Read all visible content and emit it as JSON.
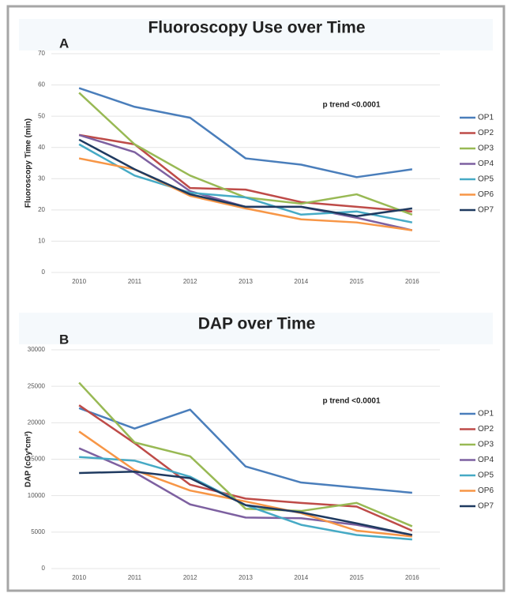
{
  "chart_data": [
    {
      "type": "line",
      "title": "Fluoroscopy Use over Time",
      "panel_label": "A",
      "annotation": "p trend <0.0001",
      "y_label": "Fluoroscopy Time (min)",
      "categories": [
        "2010",
        "2011",
        "2012",
        "2013",
        "2014",
        "2015",
        "2016"
      ],
      "ylim": [
        0,
        70
      ],
      "yticks": [
        0,
        10,
        20,
        30,
        40,
        50,
        60,
        70
      ],
      "grid": true,
      "legend": "right",
      "series": [
        {
          "name": "OP1",
          "color": "#4a7ebb",
          "values": [
            59,
            53,
            49.5,
            36.5,
            34.5,
            30.5,
            33
          ]
        },
        {
          "name": "OP2",
          "color": "#be4b48",
          "values": [
            44,
            41,
            27,
            26.5,
            22.5,
            21,
            19.5
          ]
        },
        {
          "name": "OP3",
          "color": "#98b954",
          "values": [
            57.5,
            41,
            31,
            24,
            22,
            25,
            18.5
          ]
        },
        {
          "name": "OP4",
          "color": "#7d60a0",
          "values": [
            44,
            38.5,
            26,
            21,
            21,
            17.5,
            13.5
          ]
        },
        {
          "name": "OP5",
          "color": "#46aac5",
          "values": [
            41,
            31,
            25.5,
            24,
            18.5,
            19.5,
            16
          ]
        },
        {
          "name": "OP6",
          "color": "#f79646",
          "values": [
            36.5,
            33,
            24.5,
            20.5,
            17,
            16,
            13.5
          ]
        },
        {
          "name": "OP7",
          "color": "#1f3a60",
          "values": [
            42.5,
            33,
            25,
            21,
            21,
            18,
            20.5
          ]
        }
      ]
    },
    {
      "type": "line",
      "title": "DAP over Time",
      "panel_label": "B",
      "annotation": "p trend <0.0001",
      "y_label": "DAP (cGy*cm²)",
      "categories": [
        "2010",
        "2011",
        "2012",
        "2013",
        "2014",
        "2015",
        "2016"
      ],
      "ylim": [
        0,
        30000
      ],
      "yticks": [
        0,
        5000,
        10000,
        15000,
        20000,
        25000,
        30000
      ],
      "grid": true,
      "legend": "right",
      "series": [
        {
          "name": "OP1",
          "color": "#4a7ebb",
          "values": [
            22000,
            19200,
            21800,
            14000,
            11800,
            11100,
            10400
          ]
        },
        {
          "name": "OP2",
          "color": "#be4b48",
          "values": [
            22400,
            17200,
            11500,
            9600,
            9000,
            8500,
            5200
          ]
        },
        {
          "name": "OP3",
          "color": "#98b954",
          "values": [
            25500,
            17300,
            15400,
            8200,
            7900,
            9000,
            5800
          ]
        },
        {
          "name": "OP4",
          "color": "#7d60a0",
          "values": [
            16500,
            13200,
            8800,
            7000,
            6900,
            6000,
            4600
          ]
        },
        {
          "name": "OP5",
          "color": "#46aac5",
          "values": [
            15300,
            14800,
            12600,
            8700,
            6000,
            4600,
            4000
          ]
        },
        {
          "name": "OP6",
          "color": "#f79646",
          "values": [
            18800,
            13500,
            10700,
            9200,
            7600,
            5200,
            4400
          ]
        },
        {
          "name": "OP7",
          "color": "#1f3a60",
          "values": [
            13100,
            13300,
            12400,
            8700,
            7700,
            6200,
            4600
          ]
        }
      ]
    }
  ]
}
